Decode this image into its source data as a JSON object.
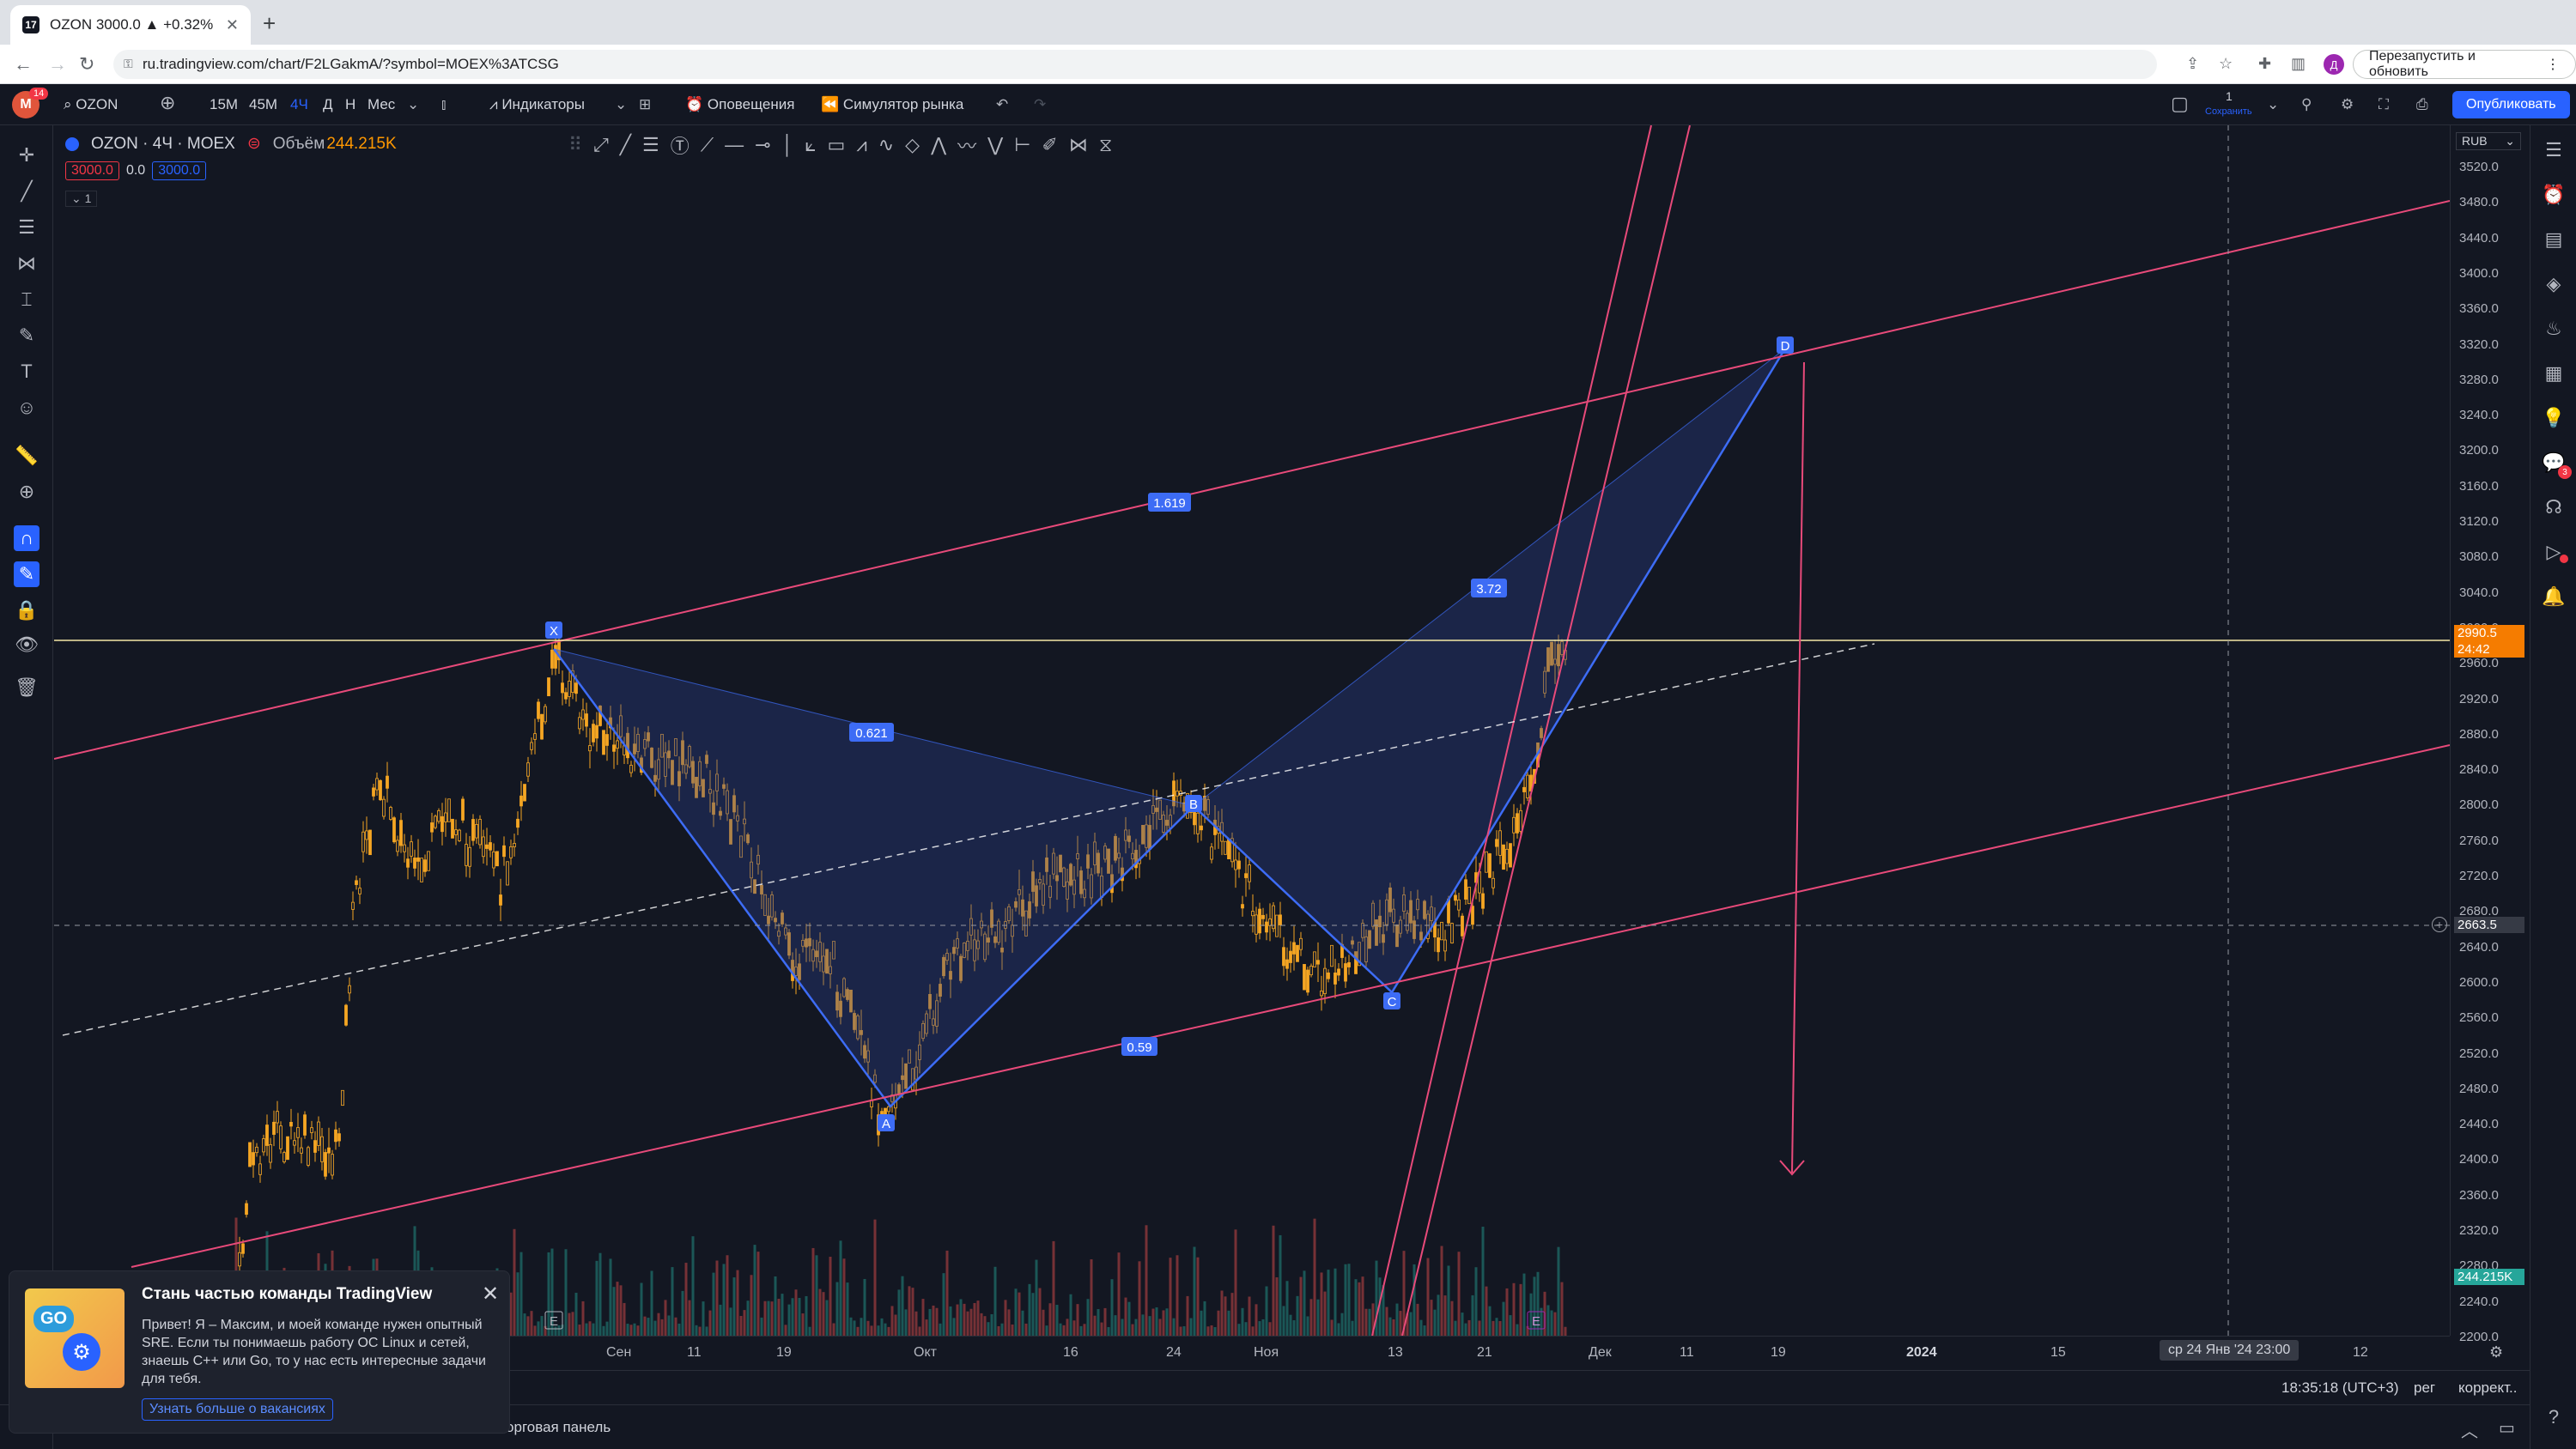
{
  "browser": {
    "tab_title": "OZON 3000.0 ▲ +0.32% 1",
    "new_tab": "+",
    "url": "ru.tradingview.com/chart/F2LGakmA/?symbol=MOEX%3ATCSG",
    "relaunch_label": "Перезапустить и обновить",
    "profile_letter": "Д"
  },
  "toolbar": {
    "avatar": "M",
    "badge": "14",
    "symbol": "OZON",
    "intervals": [
      "15M",
      "45M",
      "4Ч",
      "Д",
      "Н",
      "Мес"
    ],
    "active_interval": "4Ч",
    "indicators": "Индикаторы",
    "alerts": "Оповещения",
    "replay": "Симулятор рынка",
    "layout_count": "1",
    "save": "Сохранить",
    "publish": "Опубликовать"
  },
  "legend": {
    "title": "OZON · 4Ч · MOEX",
    "volume_label": "Объём",
    "volume_value": "244.215K",
    "price_a": "3000.0",
    "price_b": "0.0",
    "price_c": "3000.0",
    "collapse": "1"
  },
  "axis": {
    "currency": "RUB",
    "y_ticks": [
      "3520.0",
      "3480.0",
      "3440.0",
      "3400.0",
      "3360.0",
      "3320.0",
      "3280.0",
      "3240.0",
      "3200.0",
      "3160.0",
      "3120.0",
      "3080.0",
      "3040.0",
      "3000.0",
      "2960.0",
      "2920.0",
      "2880.0",
      "2840.0",
      "2800.0",
      "2760.0",
      "2720.0",
      "2680.0",
      "2640.0",
      "2600.0",
      "2560.0",
      "2520.0",
      "2480.0",
      "2440.0",
      "2400.0",
      "2360.0",
      "2320.0",
      "2280.0",
      "2240.0",
      "2200.0"
    ],
    "last_price": "2990.5",
    "countdown": "24:42",
    "crosshair_price": "2663.5",
    "volume_label": "244.215K",
    "x_ticks": [
      "22",
      "Сен",
      "11",
      "19",
      "Окт",
      "16",
      "24",
      "Ноя",
      "13",
      "21",
      "Дек",
      "11",
      "19",
      "2024",
      "15",
      "Фев",
      "12"
    ],
    "crosshair_time": "ср 24 Янв '24   23:00"
  },
  "pattern": {
    "points": [
      "X",
      "A",
      "B",
      "C",
      "D",
      "E",
      "E"
    ],
    "ratios": [
      "1.619",
      "3.72",
      "0.621",
      "0.59"
    ]
  },
  "bottom": {
    "clock": "18:35:18 (UTC+3)",
    "reg": "рег",
    "adj": "коррект..",
    "trade_panel": "Торговая панель"
  },
  "popup": {
    "title": "Стань частью команды TradingView",
    "body": "Привет! Я – Максим, и моей команде нужен опытный SRE. Если ты понимаешь работу ОС Linux и сетей, знаешь C++ или Go, то у нас есть интересные задачи для тебя.",
    "button": "Узнать больше о вакансиях"
  },
  "colors": {
    "bg": "#131722",
    "candle_up": "#f5a623",
    "pattern_line": "#3d6cf5",
    "channel": "#e84a7a",
    "accent": "#2962ff"
  }
}
